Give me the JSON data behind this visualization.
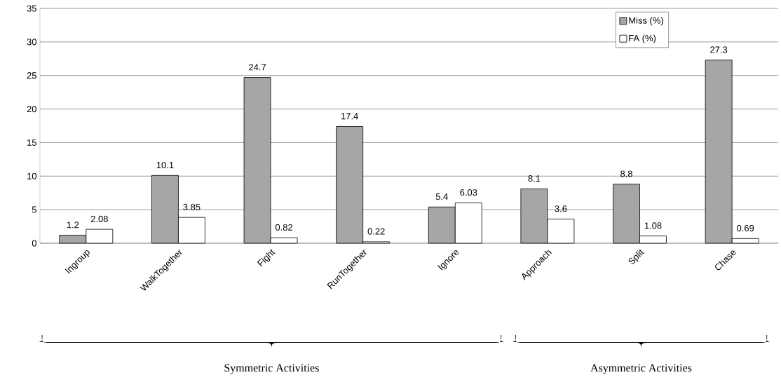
{
  "chart_data": {
    "type": "bar",
    "categories": [
      "Ingroup",
      "WalkTogether",
      "Fight",
      "RunTogether",
      "Ignore",
      "Approach",
      "Split",
      "Chase"
    ],
    "series": [
      {
        "name": "Miss (%)",
        "color": "#a6a6a6",
        "values": [
          1.2,
          10.1,
          24.7,
          17.4,
          5.4,
          8.1,
          8.8,
          27.3
        ]
      },
      {
        "name": "FA (%)",
        "color": "#ffffff",
        "values": [
          2.08,
          3.85,
          0.82,
          0.22,
          6.03,
          3.6,
          1.08,
          0.69
        ]
      }
    ],
    "ylim": [
      0,
      35
    ],
    "yticks": [
      0,
      5,
      10,
      15,
      20,
      25,
      30,
      35
    ],
    "grid": "y",
    "legend": "top right",
    "data_labels": true,
    "annotations": [
      "Symmetric Activities",
      "Asymmetric Activities"
    ]
  }
}
